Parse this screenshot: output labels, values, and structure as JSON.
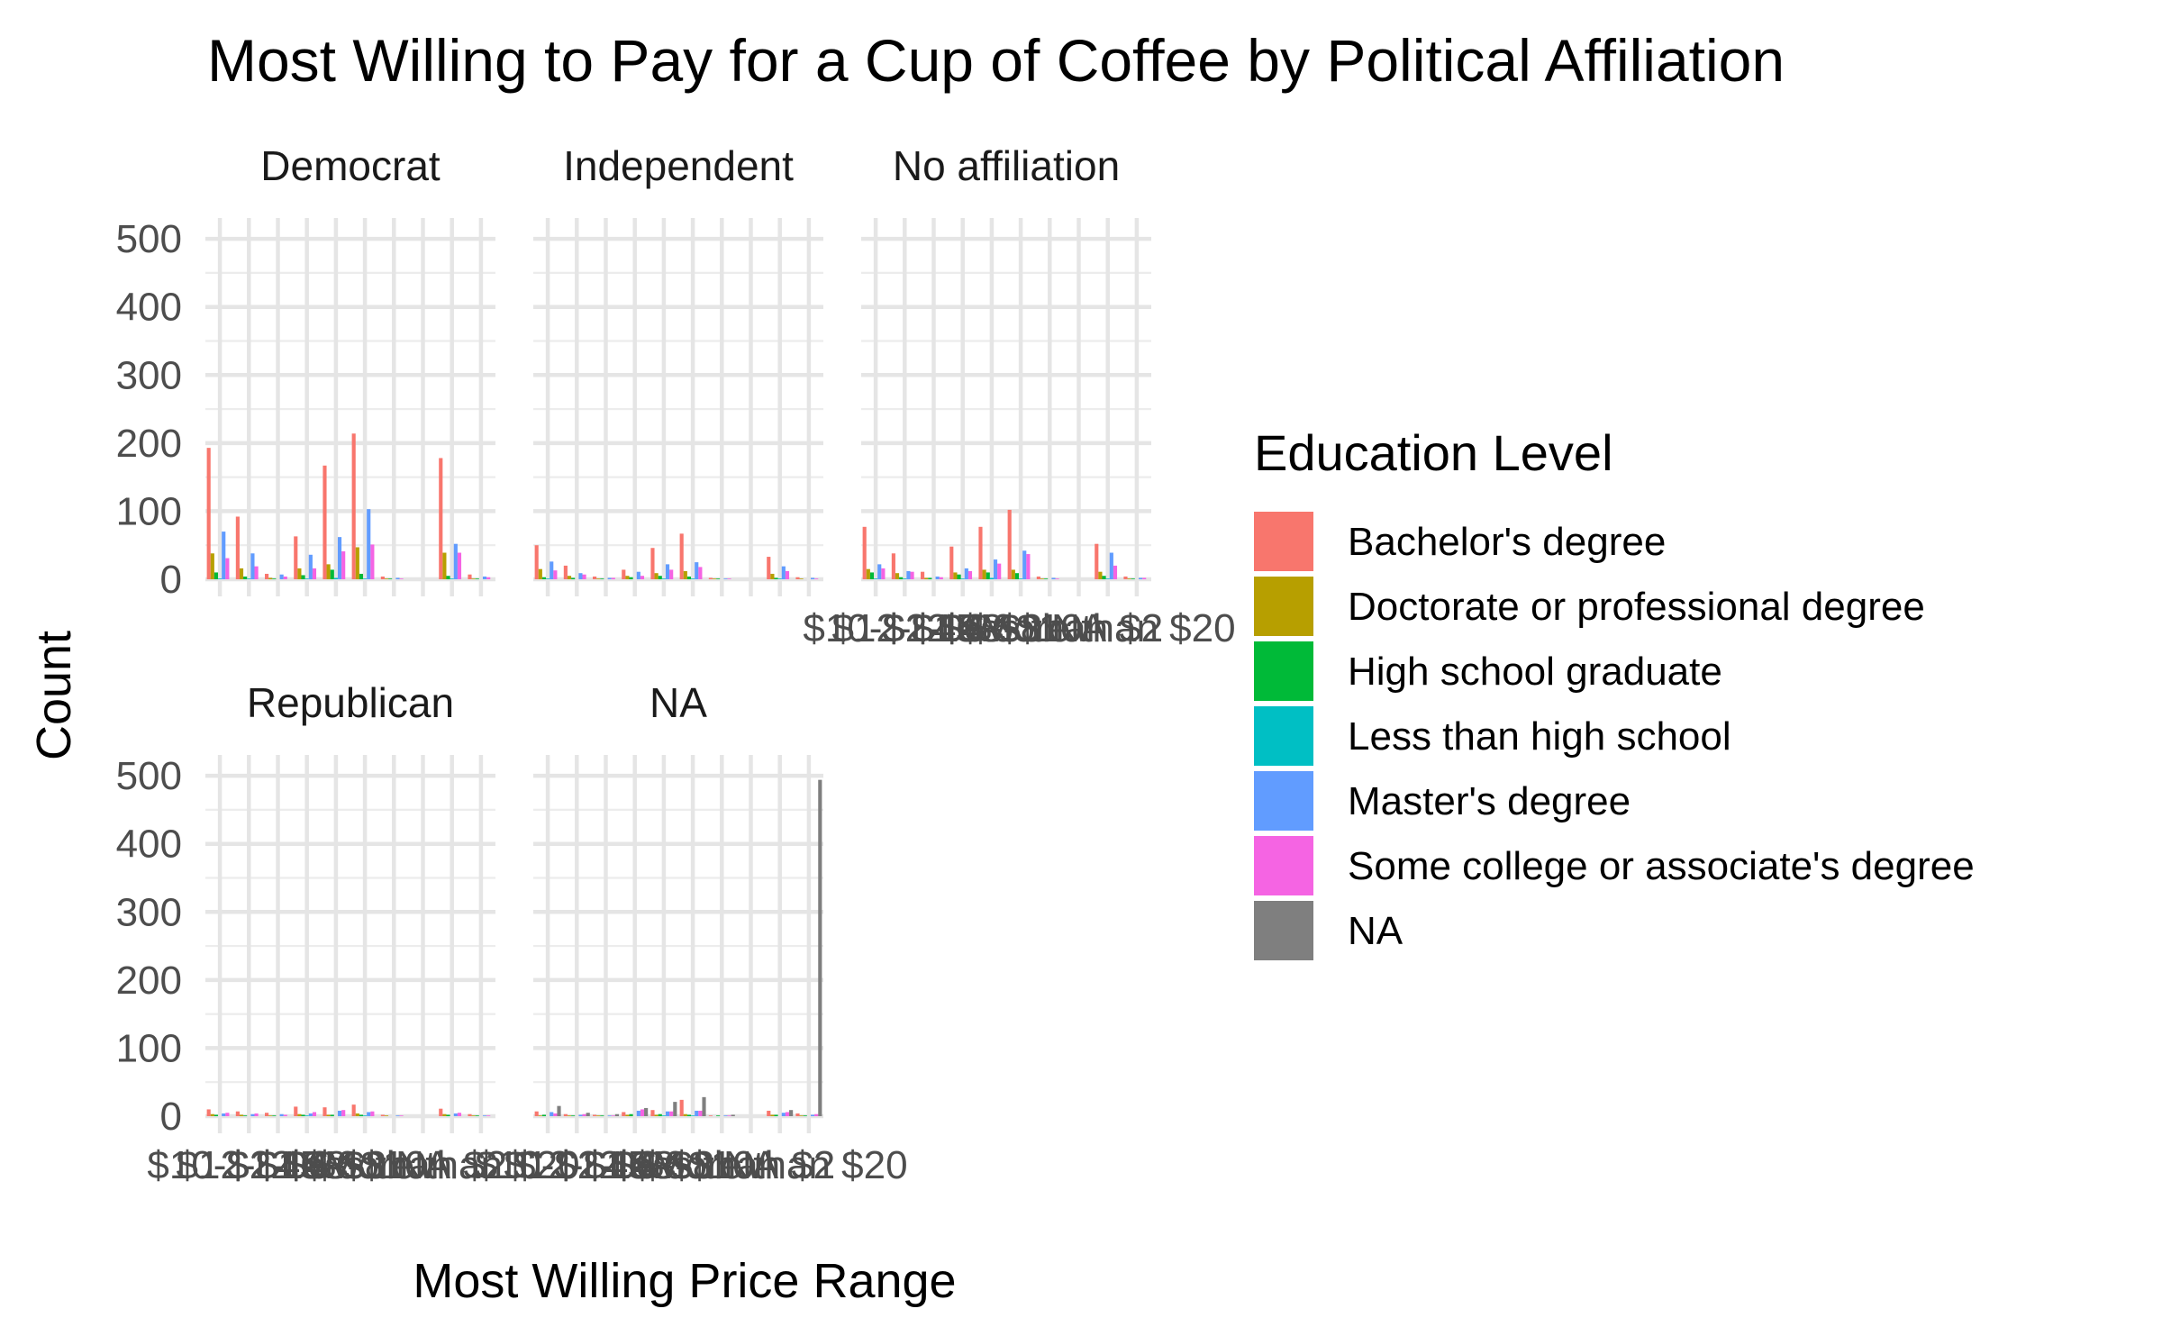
{
  "chart_data": {
    "type": "bar",
    "title": "Most Willing to Pay for a Cup of Coffee by Political Affiliation",
    "xlabel": "Most Willing Price Range",
    "ylabel": "Count",
    "ylim": [
      0,
      520
    ],
    "yticks": [
      0,
      100,
      200,
      300,
      400,
      500
    ],
    "grid": true,
    "legend_position": "right",
    "categories": [
      "$10-$12",
      "$12-$15",
      "$2-$4",
      "$4-$6",
      "$6-$8",
      "$8-$10",
      "Less than $2",
      "NA",
      "More than $20",
      "$15-$20"
    ],
    "x_tick_labels_rendered": [
      "$10-$12",
      "$12-$15",
      "$2-$4",
      "$4-$6",
      "$6-$8",
      "$8-$10",
      "Less than $2",
      "NA",
      "More than $20"
    ],
    "legend": {
      "title": "Education Level",
      "items": [
        {
          "name": "Bachelor's degree",
          "color": "#F8766D"
        },
        {
          "name": "Doctorate or professional degree",
          "color": "#B79F00"
        },
        {
          "name": "High school graduate",
          "color": "#00BA38"
        },
        {
          "name": "Less than high school",
          "color": "#00BFC4"
        },
        {
          "name": "Master's degree",
          "color": "#619CFF"
        },
        {
          "name": "Some college or associate's degree",
          "color": "#F564E3"
        },
        {
          "name": "NA",
          "color": "#7F7F7F"
        }
      ]
    },
    "panels": [
      {
        "name": "Democrat",
        "groups": [
          [
            193,
            38,
            10,
            1,
            70,
            31,
            0
          ],
          [
            92,
            16,
            4,
            1,
            38,
            19,
            0
          ],
          [
            8,
            2,
            1,
            0,
            7,
            4,
            0
          ],
          [
            63,
            16,
            6,
            1,
            36,
            16,
            0
          ],
          [
            167,
            22,
            14,
            2,
            62,
            41,
            0
          ],
          [
            214,
            47,
            8,
            1,
            103,
            51,
            0
          ],
          [
            4,
            1,
            1,
            0,
            2,
            1,
            0
          ],
          [
            0,
            0,
            0,
            0,
            0,
            0,
            0
          ],
          [
            178,
            39,
            5,
            1,
            52,
            39,
            0
          ],
          [
            7,
            1,
            1,
            0,
            4,
            3,
            0
          ]
        ]
      },
      {
        "name": "Independent",
        "groups": [
          [
            50,
            15,
            3,
            1,
            26,
            13,
            0
          ],
          [
            20,
            5,
            2,
            0,
            9,
            7,
            0
          ],
          [
            4,
            1,
            1,
            0,
            2,
            2,
            0
          ],
          [
            14,
            5,
            3,
            0,
            11,
            5,
            0
          ],
          [
            46,
            9,
            5,
            1,
            22,
            14,
            0
          ],
          [
            67,
            12,
            4,
            1,
            25,
            18,
            0
          ],
          [
            2,
            1,
            1,
            0,
            1,
            1,
            0
          ],
          [
            0,
            0,
            0,
            0,
            0,
            0,
            0
          ],
          [
            33,
            8,
            2,
            1,
            19,
            12,
            0
          ],
          [
            3,
            1,
            0,
            0,
            2,
            1,
            0
          ]
        ]
      },
      {
        "name": "No affiliation",
        "groups": [
          [
            77,
            15,
            10,
            1,
            22,
            16,
            0
          ],
          [
            38,
            9,
            3,
            1,
            12,
            11,
            0
          ],
          [
            11,
            2,
            2,
            0,
            4,
            3,
            0
          ],
          [
            48,
            10,
            7,
            1,
            16,
            12,
            0
          ],
          [
            77,
            14,
            10,
            2,
            29,
            23,
            0
          ],
          [
            102,
            14,
            9,
            1,
            42,
            37,
            0
          ],
          [
            4,
            1,
            1,
            0,
            2,
            1,
            0
          ],
          [
            0,
            0,
            0,
            0,
            0,
            0,
            0
          ],
          [
            52,
            11,
            5,
            1,
            39,
            20,
            0
          ],
          [
            4,
            1,
            1,
            0,
            2,
            2,
            0
          ]
        ]
      },
      {
        "name": "Republican",
        "groups": [
          [
            10,
            3,
            2,
            0,
            4,
            5,
            0
          ],
          [
            7,
            2,
            1,
            0,
            3,
            4,
            0
          ],
          [
            5,
            1,
            1,
            0,
            3,
            2,
            0
          ],
          [
            14,
            3,
            2,
            1,
            4,
            6,
            0
          ],
          [
            13,
            2,
            2,
            0,
            8,
            9,
            0
          ],
          [
            17,
            4,
            2,
            1,
            6,
            7,
            0
          ],
          [
            2,
            1,
            0,
            0,
            1,
            1,
            0
          ],
          [
            0,
            0,
            0,
            0,
            0,
            0,
            0
          ],
          [
            11,
            3,
            2,
            0,
            4,
            5,
            0
          ],
          [
            3,
            1,
            1,
            0,
            1,
            1,
            0
          ]
        ]
      },
      {
        "name": "NA",
        "groups": [
          [
            7,
            1,
            2,
            0,
            6,
            4,
            15
          ],
          [
            3,
            1,
            1,
            0,
            2,
            3,
            5
          ],
          [
            2,
            1,
            1,
            0,
            1,
            1,
            3
          ],
          [
            6,
            2,
            3,
            0,
            8,
            10,
            12
          ],
          [
            9,
            2,
            3,
            1,
            7,
            7,
            21
          ],
          [
            24,
            3,
            2,
            1,
            8,
            8,
            28
          ],
          [
            1,
            0,
            1,
            0,
            1,
            1,
            2
          ],
          [
            0,
            0,
            0,
            0,
            0,
            0,
            0
          ],
          [
            8,
            2,
            2,
            0,
            5,
            6,
            9
          ],
          [
            4,
            1,
            1,
            0,
            2,
            3,
            494
          ]
        ]
      }
    ]
  }
}
